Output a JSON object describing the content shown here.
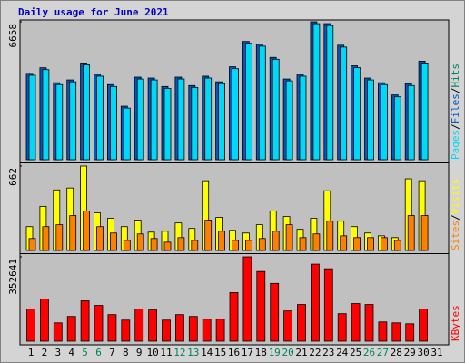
{
  "title": "Daily usage for June 2021",
  "chart_data": [
    {
      "type": "bar",
      "yticks": [
        6658
      ],
      "ylim": [
        0,
        6658
      ],
      "legend_separator": "/",
      "series": [
        {
          "name": "Pages",
          "color": "#00d8f8",
          "values": [
            4076,
            4349,
            3625,
            3761,
            4576,
            4032,
            3534,
            2492,
            3896,
            3851,
            3443,
            3896,
            3489,
            3942,
            3670,
            4395,
            5618,
            5482,
            4848,
            3806,
            4032,
            6568,
            6479,
            5437,
            4440,
            3851,
            3625,
            3036,
            3579,
            4667,
            null
          ]
        },
        {
          "name": "Files",
          "color": "#0058c0",
          "values": [
            4168,
            4439,
            3715,
            3851,
            4666,
            4122,
            3624,
            2582,
            3986,
            3941,
            3533,
            3986,
            3579,
            4032,
            3760,
            4485,
            5708,
            5572,
            4938,
            3896,
            4122,
            6658,
            6569,
            5527,
            4530,
            3941,
            3715,
            3126,
            3669,
            4757,
            null
          ]
        },
        {
          "name": "Hits",
          "color": "#008060"
        }
      ]
    },
    {
      "type": "bar",
      "yticks": [
        662
      ],
      "ylim": [
        0,
        662
      ],
      "legend_separator": "/",
      "series": [
        {
          "name": "Sites",
          "color": "#ff8000",
          "values": [
            94,
            187,
            202,
            274,
            310,
            187,
            137,
            79,
            130,
            94,
            65,
            101,
            79,
            238,
            151,
            79,
            79,
            94,
            151,
            202,
            101,
            130,
            230,
            115,
            101,
            101,
            101,
            79,
            274,
            274,
            null
          ]
        },
        {
          "name": "Visits",
          "color": "#ffff00",
          "values": [
            187,
            346,
            475,
            490,
            662,
            295,
            252,
            187,
            238,
            144,
            151,
            216,
            173,
            547,
            259,
            158,
            137,
            202,
            310,
            266,
            166,
            252,
            468,
            230,
            187,
            137,
            115,
            101,
            562,
            547,
            null
          ]
        }
      ]
    },
    {
      "type": "bar",
      "yticks": [
        352641
      ],
      "ylim": [
        0,
        352641
      ],
      "categories": [
        "1",
        "2",
        "3",
        "4",
        "5",
        "6",
        "7",
        "8",
        "9",
        "10",
        "11",
        "12",
        "13",
        "14",
        "15",
        "16",
        "17",
        "18",
        "19",
        "20",
        "21",
        "22",
        "23",
        "24",
        "25",
        "26",
        "27",
        "28",
        "29",
        "30",
        "31"
      ],
      "category_colors": [
        "#000",
        "#000",
        "#000",
        "#000",
        "#008060",
        "#008060",
        "#000",
        "#000",
        "#000",
        "#000",
        "#000",
        "#008060",
        "#008060",
        "#000",
        "#000",
        "#000",
        "#000",
        "#000",
        "#008060",
        "#008060",
        "#000",
        "#000",
        "#000",
        "#000",
        "#000",
        "#008060",
        "#008060",
        "#000",
        "#000",
        "#000",
        "#000"
      ],
      "series": [
        {
          "name": "KBytes",
          "color": "#ff0000",
          "values": [
            134155,
            176318,
            76660,
            103491,
            168652,
            149487,
            111157,
            88159,
            134155,
            130322,
            88159,
            111157,
            103491,
            91992,
            91992,
            203149,
            352641,
            291308,
            241479,
            126489,
            153320,
            321972,
            302807,
            114990,
            157153,
            153320,
            80493,
            76660,
            72827,
            134155,
            null
          ]
        }
      ]
    }
  ]
}
